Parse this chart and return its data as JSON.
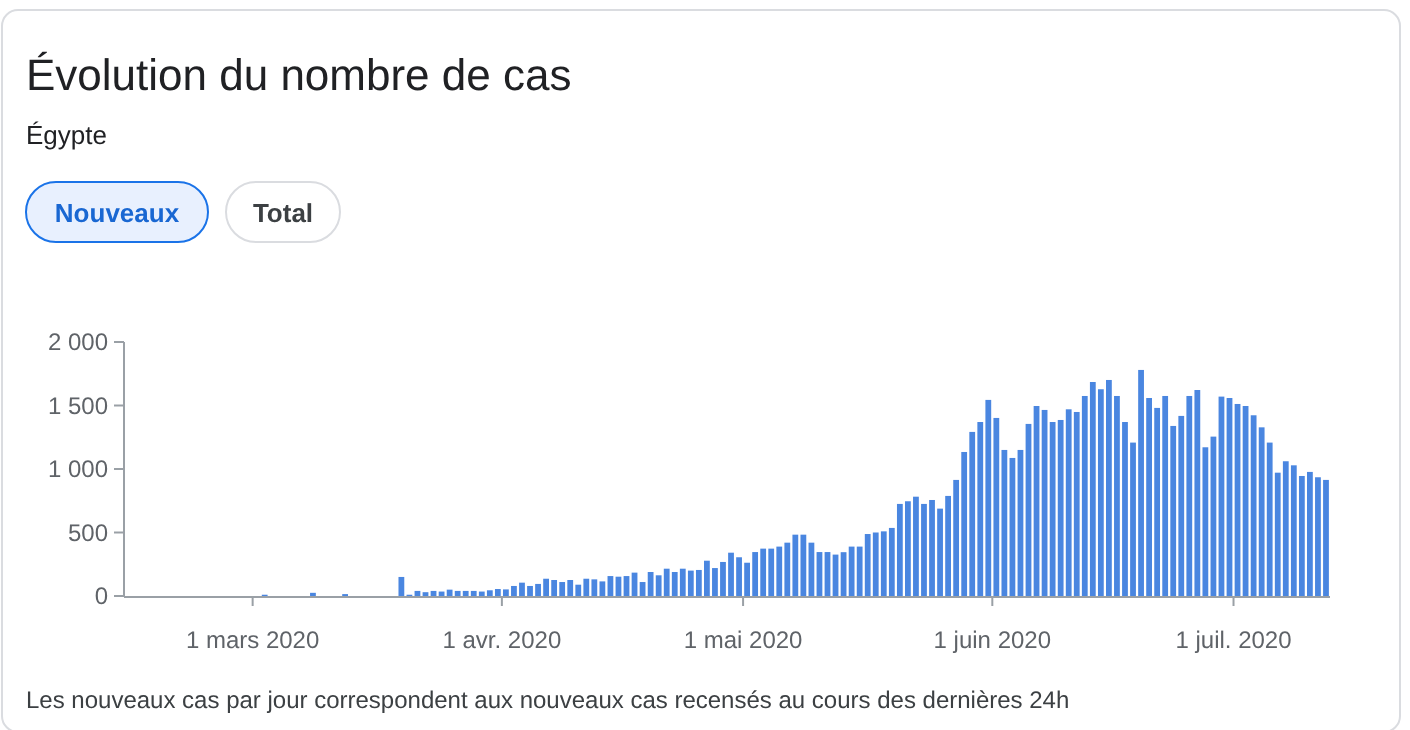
{
  "chart_data": {
    "type": "bar",
    "title": "Évolution du nombre de cas",
    "subtitle": "Égypte",
    "annotations": [
      "Nouveaux",
      "Total",
      "Les nouveaux cas par jour correspondent aux nouveaux cas recensés au cours des dernières 24h"
    ],
    "color": "#4a86e0",
    "x": [
      "2020-02-15",
      "2020-02-16",
      "2020-02-17",
      "2020-02-18",
      "2020-02-19",
      "2020-02-20",
      "2020-02-21",
      "2020-02-22",
      "2020-02-23",
      "2020-02-24",
      "2020-02-25",
      "2020-02-26",
      "2020-02-27",
      "2020-02-28",
      "2020-02-29",
      "2020-03-01",
      "2020-03-02",
      "2020-03-03",
      "2020-03-04",
      "2020-03-05",
      "2020-03-06",
      "2020-03-07",
      "2020-03-08",
      "2020-03-09",
      "2020-03-10",
      "2020-03-11",
      "2020-03-12",
      "2020-03-13",
      "2020-03-14",
      "2020-03-15",
      "2020-03-16",
      "2020-03-17",
      "2020-03-18",
      "2020-03-19",
      "2020-03-20",
      "2020-03-21",
      "2020-03-22",
      "2020-03-23",
      "2020-03-24",
      "2020-03-25",
      "2020-03-26",
      "2020-03-27",
      "2020-03-28",
      "2020-03-29",
      "2020-03-30",
      "2020-03-31",
      "2020-04-01",
      "2020-04-02",
      "2020-04-03",
      "2020-04-04",
      "2020-04-05",
      "2020-04-06",
      "2020-04-07",
      "2020-04-08",
      "2020-04-09",
      "2020-04-10",
      "2020-04-11",
      "2020-04-12",
      "2020-04-13",
      "2020-04-14",
      "2020-04-15",
      "2020-04-16",
      "2020-04-17",
      "2020-04-18",
      "2020-04-19",
      "2020-04-20",
      "2020-04-21",
      "2020-04-22",
      "2020-04-23",
      "2020-04-24",
      "2020-04-25",
      "2020-04-26",
      "2020-04-27",
      "2020-04-28",
      "2020-04-29",
      "2020-04-30",
      "2020-05-01",
      "2020-05-02",
      "2020-05-03",
      "2020-05-04",
      "2020-05-05",
      "2020-05-06",
      "2020-05-07",
      "2020-05-08",
      "2020-05-09",
      "2020-05-10",
      "2020-05-11",
      "2020-05-12",
      "2020-05-13",
      "2020-05-14",
      "2020-05-15",
      "2020-05-16",
      "2020-05-17",
      "2020-05-18",
      "2020-05-19",
      "2020-05-20",
      "2020-05-21",
      "2020-05-22",
      "2020-05-23",
      "2020-05-24",
      "2020-05-25",
      "2020-05-26",
      "2020-05-27",
      "2020-05-28",
      "2020-05-29",
      "2020-05-30",
      "2020-05-31",
      "2020-06-01",
      "2020-06-02",
      "2020-06-03",
      "2020-06-04",
      "2020-06-05",
      "2020-06-06",
      "2020-06-07",
      "2020-06-08",
      "2020-06-09",
      "2020-06-10",
      "2020-06-11",
      "2020-06-12",
      "2020-06-13",
      "2020-06-14",
      "2020-06-15",
      "2020-06-16",
      "2020-06-17",
      "2020-06-18",
      "2020-06-19",
      "2020-06-20",
      "2020-06-21",
      "2020-06-22",
      "2020-06-23",
      "2020-06-24",
      "2020-06-25",
      "2020-06-26",
      "2020-06-27",
      "2020-06-28",
      "2020-06-29",
      "2020-06-30",
      "2020-07-01",
      "2020-07-02",
      "2020-07-03",
      "2020-07-04",
      "2020-07-05",
      "2020-07-06",
      "2020-07-07",
      "2020-07-08",
      "2020-07-09",
      "2020-07-10",
      "2020-07-11",
      "2020-07-12"
    ],
    "values": [
      0,
      0,
      0,
      0,
      0,
      0,
      0,
      0,
      0,
      0,
      0,
      0,
      0,
      0,
      0,
      0,
      10,
      0,
      0,
      0,
      0,
      0,
      25,
      0,
      0,
      0,
      15,
      0,
      0,
      0,
      0,
      0,
      0,
      150,
      10,
      40,
      30,
      40,
      35,
      50,
      40,
      40,
      40,
      35,
      45,
      55,
      52,
      79,
      105,
      79,
      95,
      136,
      126,
      110,
      126,
      89,
      136,
      131,
      115,
      157,
      152,
      157,
      184,
      110,
      189,
      163,
      215,
      189,
      215,
      200,
      205,
      278,
      220,
      268,
      341,
      305,
      262,
      346,
      373,
      373,
      389,
      420,
      483,
      483,
      420,
      346,
      346,
      326,
      345,
      389,
      389,
      488,
      500,
      509,
      536,
      725,
      746,
      782,
      725,
      756,
      688,
      788,
      914,
      1134,
      1292,
      1370,
      1544,
      1402,
      1150,
      1087,
      1150,
      1355,
      1496,
      1465,
      1370,
      1386,
      1470,
      1449,
      1575,
      1685,
      1628,
      1701,
      1575,
      1370,
      1208,
      1780,
      1559,
      1481,
      1575,
      1339,
      1418,
      1575,
      1622,
      1171,
      1255,
      1570,
      1559,
      1512,
      1496,
      1423,
      1328,
      1208,
      971,
      1061,
      1029,
      945,
      977,
      935,
      914
    ],
    "xlim": [
      "2020-02-14",
      "2020-07-13"
    ],
    "xticks": [
      {
        "value": "2020-03-01",
        "label": "1 mars 2020"
      },
      {
        "value": "2020-04-01",
        "label": "1 avr. 2020"
      },
      {
        "value": "2020-05-01",
        "label": "1 mai 2020"
      },
      {
        "value": "2020-06-01",
        "label": "1 juin 2020"
      },
      {
        "value": "2020-07-01",
        "label": "1 juil. 2020"
      }
    ],
    "ylim": [
      0,
      2000
    ],
    "yticks": [
      0,
      500,
      {
        "value": 1000,
        "label": "1 000"
      },
      {
        "value": 1500,
        "label": "1 500"
      },
      {
        "value": 2000,
        "label": "2 000"
      }
    ],
    "grid": false
  }
}
